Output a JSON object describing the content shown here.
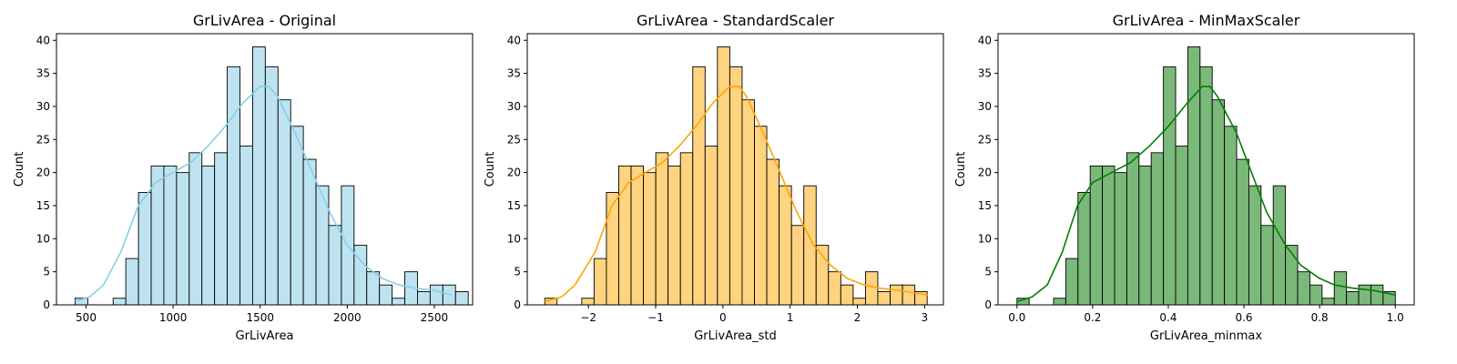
{
  "chart_data": [
    {
      "type": "bar",
      "subtype": "histogram_with_kde",
      "title": "GrLivArea - Original",
      "xlabel": "GrLivArea",
      "ylabel": "Count",
      "bin_start": 437,
      "bin_width": 72.83,
      "counts": [
        1,
        0,
        0,
        1,
        7,
        17,
        21,
        21,
        20,
        23,
        21,
        23,
        36,
        24,
        39,
        36,
        31,
        27,
        22,
        18,
        12,
        18,
        9,
        5,
        3,
        1,
        5,
        2,
        3,
        3,
        2
      ],
      "kde": [
        [
          437,
          0.5
        ],
        [
          520,
          1.2
        ],
        [
          600,
          3
        ],
        [
          700,
          8
        ],
        [
          800,
          15
        ],
        [
          900,
          18.5
        ],
        [
          1000,
          20
        ],
        [
          1100,
          21.5
        ],
        [
          1200,
          24
        ],
        [
          1300,
          27
        ],
        [
          1400,
          30.5
        ],
        [
          1500,
          33
        ],
        [
          1550,
          33
        ],
        [
          1600,
          31.5
        ],
        [
          1700,
          26
        ],
        [
          1800,
          20
        ],
        [
          1900,
          14
        ],
        [
          2000,
          9
        ],
        [
          2100,
          6
        ],
        [
          2200,
          4
        ],
        [
          2300,
          3
        ],
        [
          2400,
          2.5
        ],
        [
          2500,
          2.2
        ],
        [
          2600,
          1.5
        ]
      ],
      "xlim": [
        330,
        2720
      ],
      "ylim": [
        0,
        41
      ],
      "xticks": [
        500,
        1000,
        1500,
        2000,
        2500
      ],
      "xtick_labels": [
        "500",
        "1000",
        "1500",
        "2000",
        "2500"
      ],
      "yticks": [
        0,
        5,
        10,
        15,
        20,
        25,
        30,
        35,
        40
      ],
      "ytick_labels": [
        "0",
        "5",
        "10",
        "15",
        "20",
        "25",
        "30",
        "35",
        "40"
      ],
      "bar_color": "#bee3f0",
      "line_color": "#87ceeb"
    },
    {
      "type": "bar",
      "subtype": "histogram_with_kde",
      "title": "GrLivArea - StandardScaler",
      "xlabel": "GrLivArea_std",
      "ylabel": "Count",
      "bin_start": -2.65,
      "bin_width": 0.1835,
      "counts": [
        1,
        0,
        0,
        1,
        7,
        17,
        21,
        21,
        20,
        23,
        21,
        23,
        36,
        24,
        39,
        36,
        31,
        27,
        22,
        18,
        12,
        18,
        9,
        5,
        3,
        1,
        5,
        2,
        3,
        3,
        2
      ],
      "kde": [
        [
          -2.65,
          0.5
        ],
        [
          -2.4,
          1.2
        ],
        [
          -2.2,
          3
        ],
        [
          -1.9,
          8
        ],
        [
          -1.65,
          15
        ],
        [
          -1.4,
          18.5
        ],
        [
          -1.15,
          20
        ],
        [
          -0.9,
          21.5
        ],
        [
          -0.65,
          24
        ],
        [
          -0.4,
          27
        ],
        [
          -0.15,
          30.5
        ],
        [
          0.1,
          33
        ],
        [
          0.25,
          33
        ],
        [
          0.35,
          31.5
        ],
        [
          0.6,
          26
        ],
        [
          0.85,
          20
        ],
        [
          1.1,
          14
        ],
        [
          1.35,
          9
        ],
        [
          1.6,
          6
        ],
        [
          1.85,
          4
        ],
        [
          2.1,
          3
        ],
        [
          2.35,
          2.5
        ],
        [
          2.6,
          2.2
        ],
        [
          3.05,
          1.5
        ]
      ],
      "xlim": [
        -2.91,
        3.28
      ],
      "ylim": [
        0,
        41
      ],
      "xticks": [
        -2,
        -1,
        0,
        1,
        2,
        3
      ],
      "xtick_labels": [
        "−2",
        "−1",
        "0",
        "1",
        "2",
        "3"
      ],
      "yticks": [
        0,
        5,
        10,
        15,
        20,
        25,
        30,
        35,
        40
      ],
      "ytick_labels": [
        "0",
        "5",
        "10",
        "15",
        "20",
        "25",
        "30",
        "35",
        "40"
      ],
      "bar_color": "#ffd37f",
      "line_color": "#ffa500"
    },
    {
      "type": "bar",
      "subtype": "histogram_with_kde",
      "title": "GrLivArea - MinMaxScaler",
      "xlabel": "GrLivArea_minmax",
      "ylabel": "Count",
      "bin_start": 0,
      "bin_width": 0.03226,
      "counts": [
        1,
        0,
        0,
        1,
        7,
        17,
        21,
        21,
        20,
        23,
        21,
        23,
        36,
        24,
        39,
        36,
        31,
        27,
        22,
        18,
        12,
        18,
        9,
        5,
        3,
        1,
        5,
        2,
        3,
        3,
        2
      ],
      "kde": [
        [
          0,
          0.5
        ],
        [
          0.04,
          1.2
        ],
        [
          0.08,
          3
        ],
        [
          0.12,
          8
        ],
        [
          0.16,
          15
        ],
        [
          0.2,
          18.5
        ],
        [
          0.25,
          20
        ],
        [
          0.3,
          21.5
        ],
        [
          0.35,
          24
        ],
        [
          0.4,
          27
        ],
        [
          0.45,
          30.5
        ],
        [
          0.49,
          33
        ],
        [
          0.51,
          33
        ],
        [
          0.53,
          31.5
        ],
        [
          0.58,
          26
        ],
        [
          0.62,
          20
        ],
        [
          0.66,
          14
        ],
        [
          0.71,
          9
        ],
        [
          0.75,
          6
        ],
        [
          0.8,
          4
        ],
        [
          0.84,
          3
        ],
        [
          0.89,
          2.5
        ],
        [
          0.94,
          2.2
        ],
        [
          1.0,
          1.5
        ]
      ],
      "xlim": [
        -0.05,
        1.05
      ],
      "ylim": [
        0,
        41
      ],
      "xticks": [
        0.0,
        0.2,
        0.4,
        0.6,
        0.8,
        1.0
      ],
      "xtick_labels": [
        "0.0",
        "0.2",
        "0.4",
        "0.6",
        "0.8",
        "1.0"
      ],
      "yticks": [
        0,
        5,
        10,
        15,
        20,
        25,
        30,
        35,
        40
      ],
      "ytick_labels": [
        "0",
        "5",
        "10",
        "15",
        "20",
        "25",
        "30",
        "35",
        "40"
      ],
      "bar_color": "#7bb97b",
      "line_color": "#008000"
    }
  ]
}
